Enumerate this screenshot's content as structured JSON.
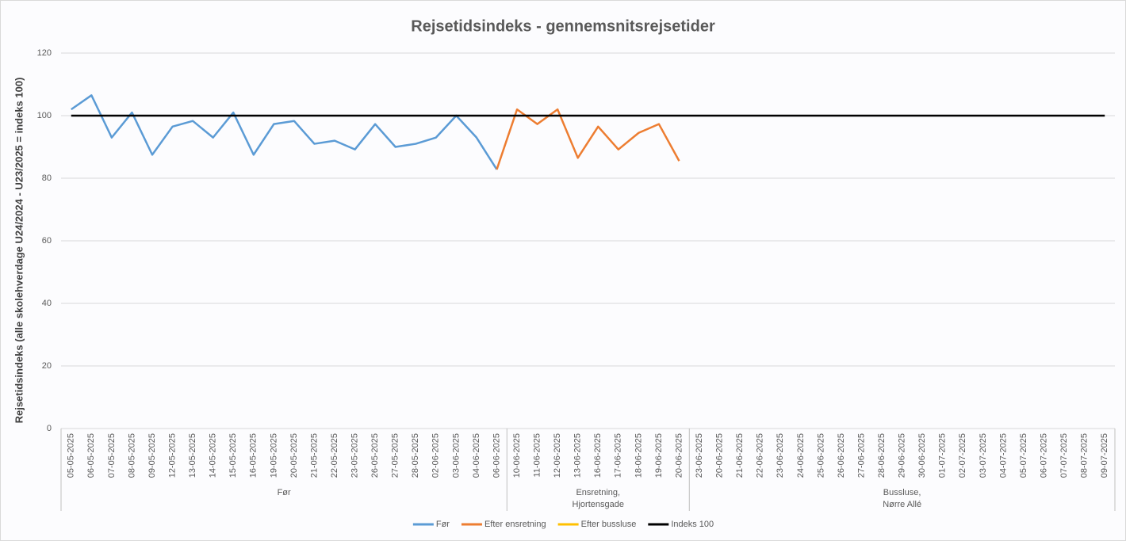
{
  "chart_data": {
    "type": "line",
    "title": "Rejsetidsindeks - gennemsnitsrejsetider",
    "y_label": "Rejsetidsindeks (alle skolehverdage U24/2024 - U23/2025 = indeks 100)",
    "categories": [
      "05-05-2025",
      "06-05-2025",
      "07-05-2025",
      "08-05-2025",
      "09-05-2025",
      "12-05-2025",
      "13-05-2025",
      "14-05-2025",
      "15-05-2025",
      "16-05-2025",
      "19-05-2025",
      "20-05-2025",
      "21-05-2025",
      "22-05-2025",
      "23-05-2025",
      "26-05-2025",
      "27-05-2025",
      "28-05-2025",
      "02-06-2025",
      "03-06-2025",
      "04-06-2025",
      "06-06-2025",
      "10-06-2025",
      "11-06-2025",
      "12-06-2025",
      "13-06-2025",
      "16-06-2025",
      "17-06-2025",
      "18-06-2025",
      "19-06-2025",
      "20-06-2025",
      "23-06-2025",
      "20-06-2025",
      "21-06-2025",
      "22-06-2025",
      "23-06-2025",
      "24-06-2025",
      "25-06-2025",
      "26-06-2025",
      "27-06-2025",
      "28-06-2025",
      "29-06-2025",
      "30-06-2025",
      "01-07-2025",
      "02-07-2025",
      "03-07-2025",
      "04-07-2025",
      "05-07-2025",
      "06-07-2025",
      "07-07-2025",
      "08-07-2025",
      "09-07-2025"
    ],
    "groups": [
      {
        "label": [
          "Før"
        ],
        "count": 22
      },
      {
        "label": [
          "Ensretning,",
          "Hjortensgade"
        ],
        "count": 9
      },
      {
        "label": [
          "Bussluse,",
          "Nørre Allé"
        ],
        "count": 21
      }
    ],
    "series": [
      {
        "name": "Før",
        "color": "#5b9bd5",
        "values": [
          102,
          106.5,
          93,
          101,
          87.5,
          96.5,
          98.3,
          93,
          101,
          87.5,
          97.3,
          98.3,
          91,
          92,
          89.2,
          97.3,
          90,
          91,
          93,
          100,
          93,
          82.8,
          null,
          null,
          null,
          null,
          null,
          null,
          null,
          null,
          null,
          null,
          null,
          null,
          null,
          null,
          null,
          null,
          null,
          null,
          null,
          null,
          null,
          null,
          null,
          null,
          null,
          null,
          null,
          null,
          null,
          null
        ]
      },
      {
        "name": "Efter ensretning",
        "color": "#ed7d31",
        "values": [
          null,
          null,
          null,
          null,
          null,
          null,
          null,
          null,
          null,
          null,
          null,
          null,
          null,
          null,
          null,
          null,
          null,
          null,
          null,
          null,
          null,
          82.8,
          102,
          97.3,
          102,
          86.5,
          96.5,
          89.2,
          94.5,
          97.3,
          85.5,
          null,
          null,
          null,
          null,
          null,
          null,
          null,
          null,
          null,
          null,
          null,
          null,
          null,
          null,
          null,
          null,
          null,
          null,
          null,
          null,
          null
        ]
      },
      {
        "name": "Efter bussluse",
        "color": "#ffc000",
        "values": [
          null,
          null,
          null,
          null,
          null,
          null,
          null,
          null,
          null,
          null,
          null,
          null,
          null,
          null,
          null,
          null,
          null,
          null,
          null,
          null,
          null,
          null,
          null,
          null,
          null,
          null,
          null,
          null,
          null,
          null,
          null,
          null,
          null,
          null,
          null,
          null,
          null,
          null,
          null,
          null,
          null,
          null,
          null,
          null,
          null,
          null,
          null,
          null,
          null,
          null,
          null,
          null
        ]
      },
      {
        "name": "Indeks 100",
        "color": "#000000",
        "values": [
          100,
          100,
          100,
          100,
          100,
          100,
          100,
          100,
          100,
          100,
          100,
          100,
          100,
          100,
          100,
          100,
          100,
          100,
          100,
          100,
          100,
          100,
          100,
          100,
          100,
          100,
          100,
          100,
          100,
          100,
          100,
          100,
          100,
          100,
          100,
          100,
          100,
          100,
          100,
          100,
          100,
          100,
          100,
          100,
          100,
          100,
          100,
          100,
          100,
          100,
          100,
          100
        ]
      }
    ],
    "ylim": [
      0,
      120
    ],
    "yticks": [
      0,
      20,
      40,
      60,
      80,
      100,
      120
    ],
    "grid": true,
    "legend": "bottom"
  }
}
